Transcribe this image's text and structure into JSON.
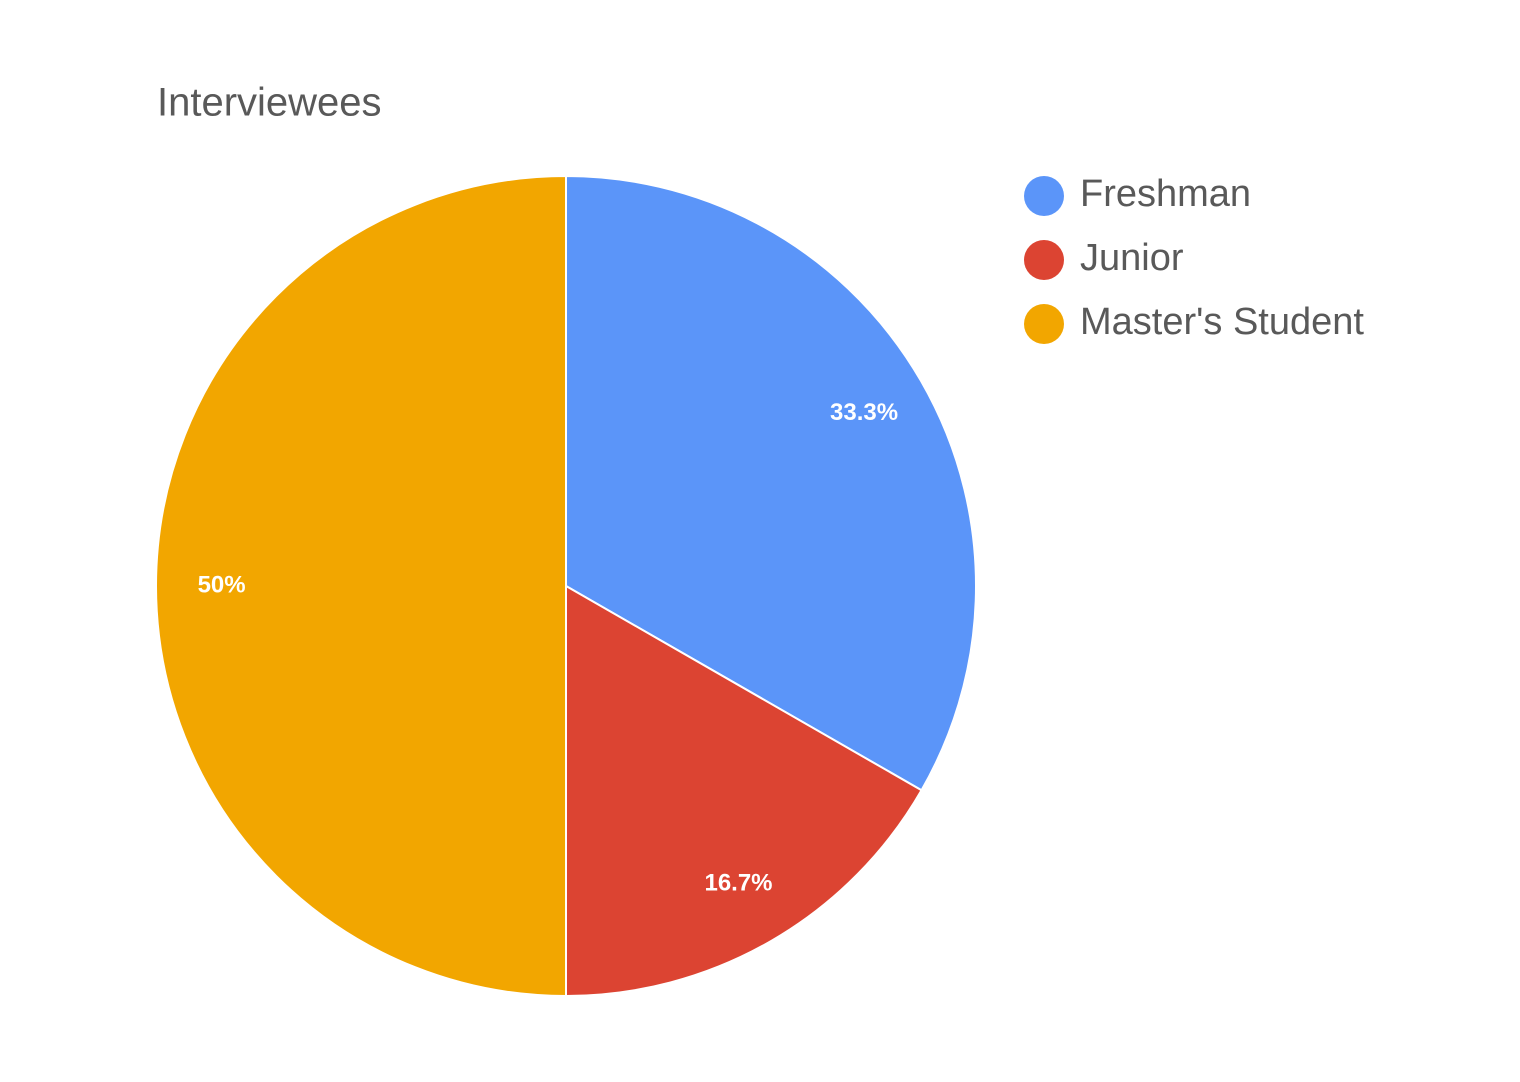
{
  "chart_data": {
    "type": "pie",
    "title": "Interviewees",
    "categories": [
      "Freshman",
      "Junior",
      "Master's Student"
    ],
    "values": [
      33.3,
      16.7,
      50
    ],
    "value_labels": [
      "33.3%",
      "16.7%",
      "50%"
    ],
    "colors": [
      "#5b95f9",
      "#dc4432",
      "#f2a600"
    ],
    "legend": "right"
  }
}
